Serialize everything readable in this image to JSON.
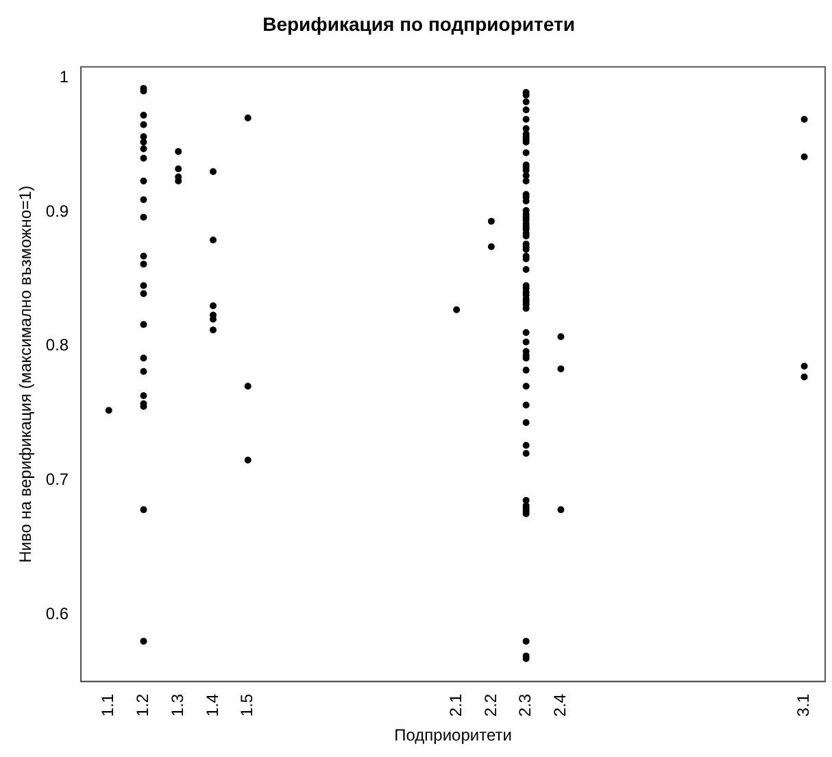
{
  "chart_data": {
    "type": "scatter",
    "title": "Верификация по подприоритети",
    "xlabel": "Подприоритети",
    "ylabel": "Ниво на верификация (максимално възможно=1)",
    "xlim": [
      1.02,
      3.16
    ],
    "xticks": [
      1.1,
      1.2,
      1.3,
      1.4,
      1.5,
      2.1,
      2.2,
      2.3,
      2.4,
      3.1
    ],
    "ylim": [
      0.55,
      1.008
    ],
    "yticks": [
      0.6,
      0.7,
      0.8,
      0.9,
      1.0
    ],
    "grid": false,
    "legend": false,
    "marker": "circle",
    "series": [
      {
        "color": "#000000",
        "x": [
          1.1,
          1.2,
          1.2,
          1.2,
          1.2,
          1.2,
          1.2,
          1.2,
          1.2,
          1.2,
          1.2,
          1.2,
          1.2,
          1.2,
          1.2,
          1.2,
          1.2,
          1.2,
          1.2,
          1.2,
          1.2,
          1.2,
          1.2,
          1.2,
          1.3,
          1.3,
          1.3,
          1.3,
          1.4,
          1.4,
          1.4,
          1.4,
          1.4,
          1.4,
          1.5,
          1.5,
          1.5,
          2.1,
          2.2,
          2.2,
          2.3,
          2.3,
          2.3,
          2.3,
          2.3,
          2.3,
          2.3,
          2.3,
          2.3,
          2.3,
          2.3,
          2.3,
          2.3,
          2.3,
          2.3,
          2.3,
          2.3,
          2.3,
          2.3,
          2.3,
          2.3,
          2.3,
          2.3,
          2.3,
          2.3,
          2.3,
          2.3,
          2.3,
          2.3,
          2.3,
          2.3,
          2.3,
          2.3,
          2.3,
          2.3,
          2.3,
          2.3,
          2.3,
          2.3,
          2.3,
          2.3,
          2.3,
          2.3,
          2.3,
          2.3,
          2.3,
          2.3,
          2.3,
          2.3,
          2.3,
          2.3,
          2.3,
          2.3,
          2.3,
          2.3,
          2.3,
          2.3,
          2.3,
          2.3,
          2.3,
          2.3,
          2.4,
          2.4,
          2.4,
          3.1,
          3.1,
          3.1,
          3.1
        ],
        "values": [
          0.752,
          0.992,
          0.99,
          0.972,
          0.965,
          0.956,
          0.952,
          0.947,
          0.94,
          0.923,
          0.909,
          0.896,
          0.867,
          0.861,
          0.845,
          0.839,
          0.816,
          0.791,
          0.781,
          0.763,
          0.757,
          0.755,
          0.678,
          0.58,
          0.945,
          0.932,
          0.926,
          0.923,
          0.93,
          0.879,
          0.83,
          0.823,
          0.82,
          0.812,
          0.97,
          0.77,
          0.715,
          0.827,
          0.893,
          0.874,
          0.989,
          0.987,
          0.982,
          0.976,
          0.969,
          0.962,
          0.958,
          0.956,
          0.954,
          0.952,
          0.944,
          0.935,
          0.933,
          0.931,
          0.927,
          0.923,
          0.913,
          0.911,
          0.908,
          0.901,
          0.898,
          0.896,
          0.894,
          0.891,
          0.889,
          0.887,
          0.884,
          0.882,
          0.876,
          0.874,
          0.872,
          0.867,
          0.865,
          0.857,
          0.845,
          0.843,
          0.84,
          0.838,
          0.835,
          0.833,
          0.831,
          0.828,
          0.81,
          0.803,
          0.796,
          0.793,
          0.791,
          0.782,
          0.77,
          0.756,
          0.743,
          0.726,
          0.72,
          0.685,
          0.681,
          0.679,
          0.677,
          0.675,
          0.58,
          0.569,
          0.567,
          0.807,
          0.783,
          0.678,
          0.969,
          0.941,
          0.785,
          0.777
        ]
      }
    ]
  }
}
